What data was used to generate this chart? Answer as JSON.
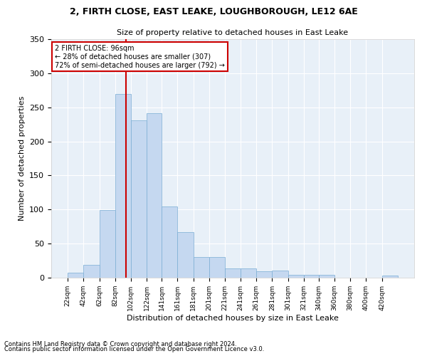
{
  "title1": "2, FIRTH CLOSE, EAST LEAKE, LOUGHBOROUGH, LE12 6AE",
  "title2": "Size of property relative to detached houses in East Leake",
  "xlabel": "Distribution of detached houses by size in East Leake",
  "ylabel": "Number of detached properties",
  "bar_color": "#c5d8f0",
  "bar_edge_color": "#7aadd4",
  "background_color": "#e8f0f8",
  "grid_color": "#ffffff",
  "vline_color": "#cc0000",
  "vline_x": 96,
  "annotation_title": "2 FIRTH CLOSE: 96sqm",
  "annotation_line1": "← 28% of detached houses are smaller (307)",
  "annotation_line2": "72% of semi-detached houses are larger (792) →",
  "footnote1": "Contains HM Land Registry data © Crown copyright and database right 2024.",
  "footnote2": "Contains public sector information licensed under the Open Government Licence v3.0.",
  "bins": [
    22,
    42,
    62,
    82,
    102,
    122,
    141,
    161,
    181,
    201,
    221,
    241,
    261,
    281,
    301,
    321,
    340,
    360,
    380,
    400,
    420
  ],
  "counts": [
    7,
    19,
    99,
    270,
    231,
    241,
    105,
    67,
    30,
    30,
    14,
    14,
    9,
    10,
    4,
    4,
    4,
    0,
    0,
    0,
    3
  ],
  "ylim": [
    0,
    350
  ],
  "yticks": [
    0,
    50,
    100,
    150,
    200,
    250,
    300,
    350
  ]
}
